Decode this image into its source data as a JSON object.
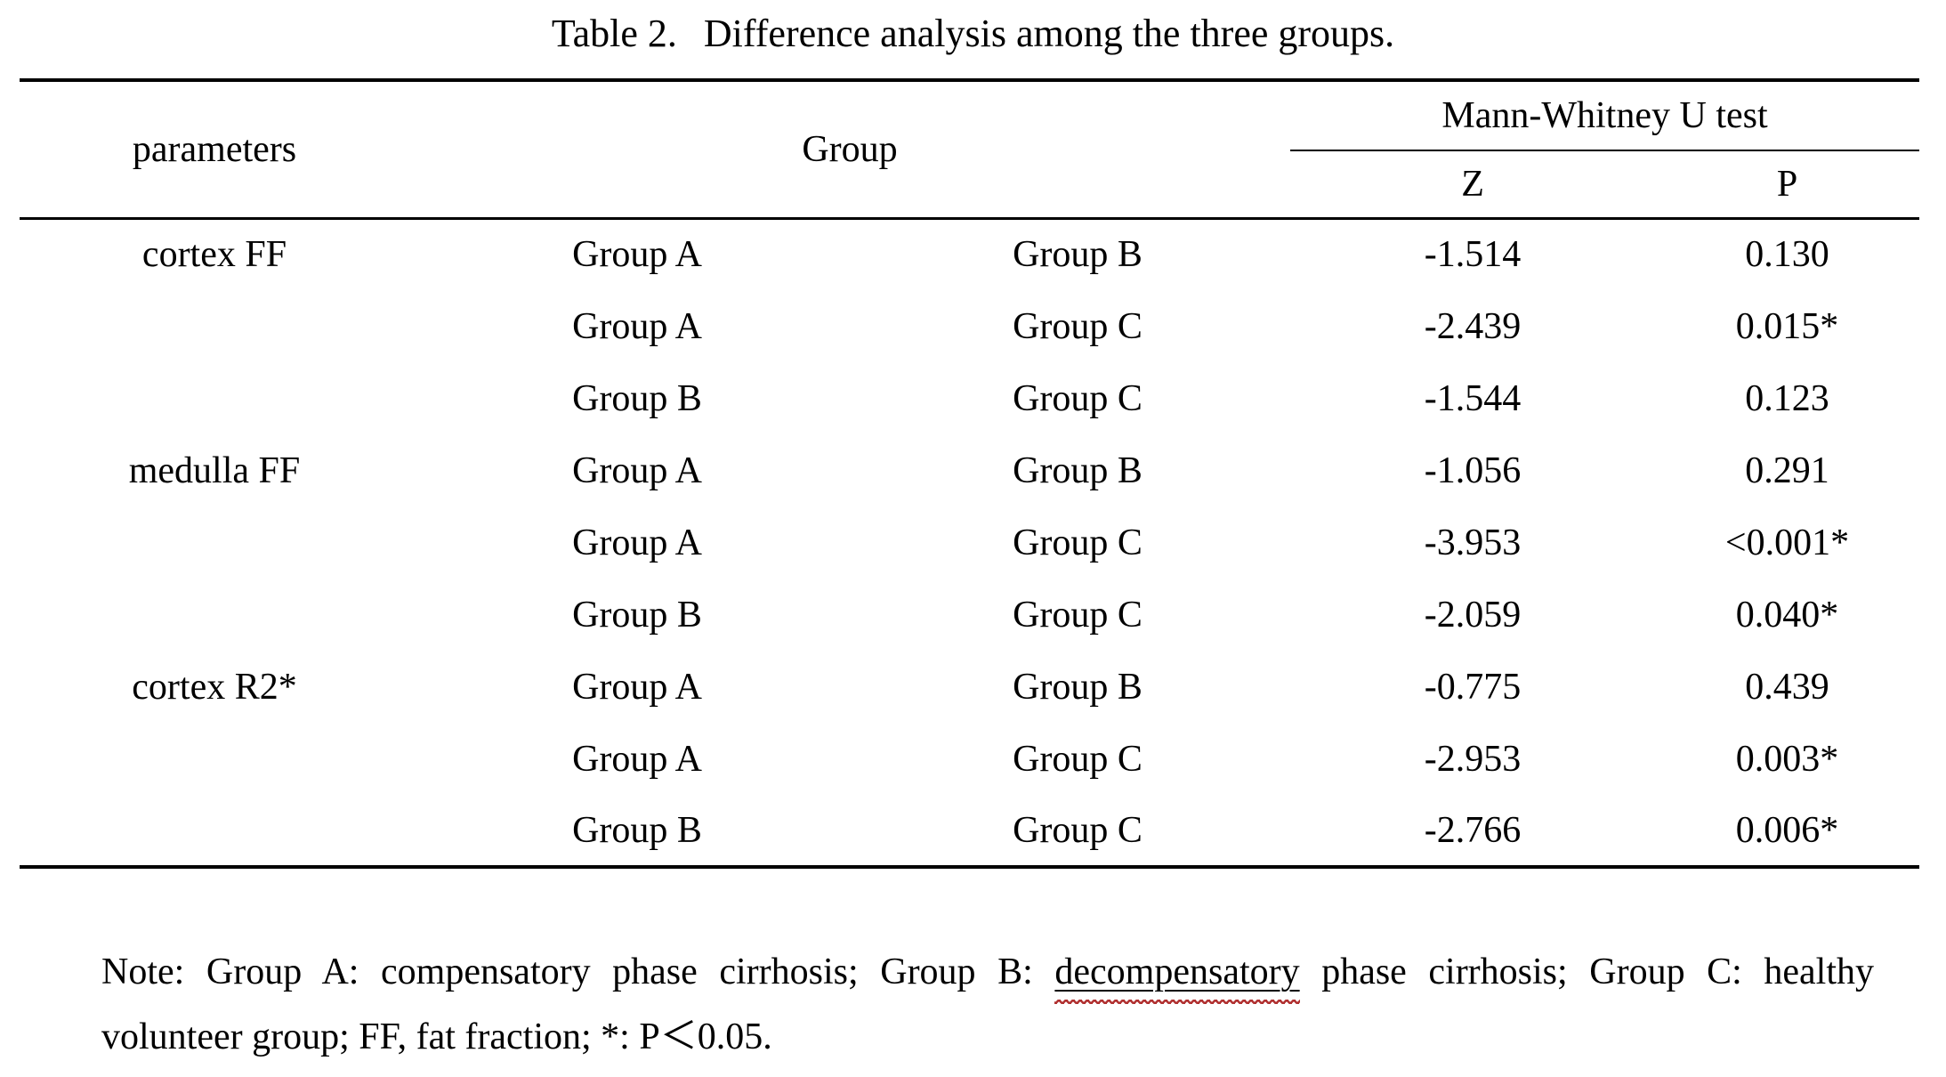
{
  "title": {
    "label": "Table 2.",
    "text": "Difference analysis among the three groups."
  },
  "table": {
    "headers": {
      "parameters": "parameters",
      "group": "Group",
      "mann_whitney": "Mann-Whitney U test",
      "z": "Z",
      "p": "P"
    },
    "rows": [
      {
        "parameter": "cortex FF",
        "group1": "Group A",
        "group2": "Group B",
        "z": "-1.514",
        "p": "0.130"
      },
      {
        "parameter": "",
        "group1": "Group A",
        "group2": "Group C",
        "z": "-2.439",
        "p": "0.015*"
      },
      {
        "parameter": "",
        "group1": "Group B",
        "group2": "Group C",
        "z": "-1.544",
        "p": "0.123"
      },
      {
        "parameter": "medulla FF",
        "group1": "Group A",
        "group2": "Group B",
        "z": "-1.056",
        "p": "0.291"
      },
      {
        "parameter": "",
        "group1": "Group A",
        "group2": "Group C",
        "z": "-3.953",
        "p": "<0.001*"
      },
      {
        "parameter": "",
        "group1": "Group B",
        "group2": "Group C",
        "z": "-2.059",
        "p": "0.040*"
      },
      {
        "parameter": "cortex R2*",
        "group1": "Group A",
        "group2": "Group B",
        "z": "-0.775",
        "p": "0.439"
      },
      {
        "parameter": "",
        "group1": "Group A",
        "group2": "Group C",
        "z": "-2.953",
        "p": "0.003*"
      },
      {
        "parameter": "",
        "group1": "Group B",
        "group2": "Group C",
        "z": "-2.766",
        "p": "0.006*"
      }
    ]
  },
  "note": {
    "line1_pre": "Note: Group A: compensatory phase cirrhosis; Group B: ",
    "line1_underlined": "decompensatory",
    "line1_post": " phase cirrhosis; Group C: healthy",
    "line2": "volunteer group; FF, fat fraction; *: P＜0.05."
  },
  "colors": {
    "text": "#000000",
    "background": "#ffffff",
    "rule": "#000000",
    "spellcheck_wave": "#b03030"
  }
}
